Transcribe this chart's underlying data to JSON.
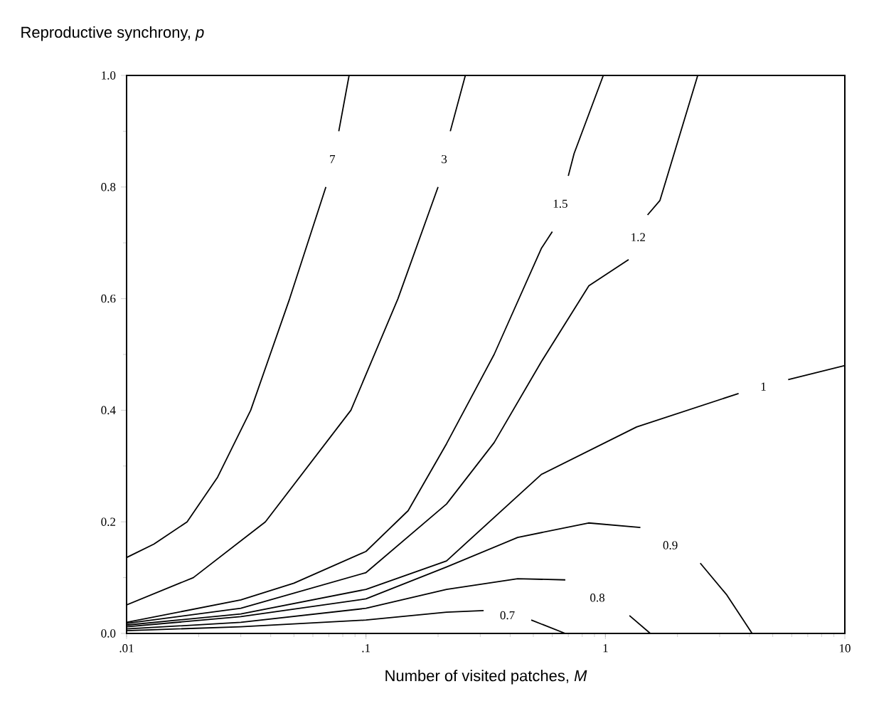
{
  "chart_data": {
    "type": "line",
    "xlabel": "Number of visited patches, *M*",
    "ylabel": "Reproductive synchrony, *p*",
    "log": "x",
    "xlim": [
      0.01,
      10
    ],
    "ylim": [
      0,
      1
    ],
    "xticks": [
      {
        "value": 0.01,
        "label": ".01"
      },
      {
        "value": 0.1,
        "label": ".1"
      },
      {
        "value": 1,
        "label": "1"
      },
      {
        "value": 10,
        "label": "10"
      }
    ],
    "yticks": [
      {
        "value": 0,
        "label": "0.0"
      },
      {
        "value": 0.2,
        "label": "0.2"
      },
      {
        "value": 0.4,
        "label": "0.4"
      },
      {
        "value": 0.6,
        "label": "0.6"
      },
      {
        "value": 0.8,
        "label": "0.8"
      },
      {
        "value": 1,
        "label": "1.0"
      }
    ],
    "series": [
      {
        "name": "7",
        "color": "#000000",
        "x": [
          0.01,
          0.013,
          0.0179,
          0.024,
          0.033,
          0.048,
          0.068,
          null,
          0.077,
          0.085
        ],
        "values": [
          0.136,
          0.16,
          0.2,
          0.28,
          0.4,
          0.6,
          0.8,
          null,
          0.9,
          1.0
        ]
      },
      {
        "name": "3",
        "color": "#000000",
        "x": [
          0.01,
          0.019,
          0.038,
          0.0865,
          0.136,
          0.2,
          null,
          0.225,
          0.26
        ],
        "values": [
          0.051,
          0.1,
          0.2,
          0.4,
          0.6,
          0.8,
          null,
          0.9,
          1.0
        ]
      },
      {
        "name": "1.5",
        "color": "#000000",
        "x": [
          0.01,
          0.03,
          0.05,
          0.1,
          0.15,
          0.217,
          0.343,
          0.54,
          0.6,
          null,
          0.7,
          0.74,
          0.98
        ],
        "values": [
          0.02,
          0.06,
          0.09,
          0.147,
          0.22,
          0.34,
          0.5,
          0.69,
          0.72,
          null,
          0.82,
          0.86,
          1.0
        ]
      },
      {
        "name": "1.2",
        "color": "#000000",
        "x": [
          0.01,
          0.03,
          0.1,
          0.217,
          0.343,
          0.54,
          0.853,
          1.25,
          null,
          1.5,
          1.69,
          2.43
        ],
        "values": [
          0.018,
          0.045,
          0.109,
          0.232,
          0.342,
          0.487,
          0.623,
          0.67,
          null,
          0.75,
          0.776,
          1.0
        ]
      },
      {
        "name": "1",
        "color": "#000000",
        "x": [
          0.01,
          0.03,
          0.1,
          0.217,
          0.54,
          1.35,
          3.6,
          null,
          5.8,
          10
        ],
        "values": [
          0.015,
          0.035,
          0.079,
          0.13,
          0.285,
          0.37,
          0.43,
          null,
          0.455,
          0.48
        ]
      },
      {
        "name": "0.9",
        "color": "#000000",
        "x": [
          0.01,
          0.03,
          0.1,
          0.217,
          0.43,
          0.85,
          1.4,
          null,
          2.49,
          3.2,
          4.1
        ],
        "values": [
          0.012,
          0.03,
          0.062,
          0.119,
          0.172,
          0.198,
          0.19,
          null,
          0.126,
          0.07,
          0
        ]
      },
      {
        "name": "0.8",
        "color": "#000000",
        "x": [
          0.01,
          0.03,
          0.1,
          0.217,
          0.43,
          0.68,
          null,
          1.26,
          1.54
        ],
        "values": [
          0.008,
          0.02,
          0.045,
          0.079,
          0.098,
          0.096,
          null,
          0.032,
          0
        ]
      },
      {
        "name": "0.7",
        "color": "#000000",
        "x": [
          0.01,
          0.03,
          0.1,
          0.217,
          0.31,
          null,
          0.49,
          0.68
        ],
        "values": [
          0.005,
          0.012,
          0.024,
          0.038,
          0.041,
          null,
          0.024,
          0
        ]
      }
    ]
  }
}
